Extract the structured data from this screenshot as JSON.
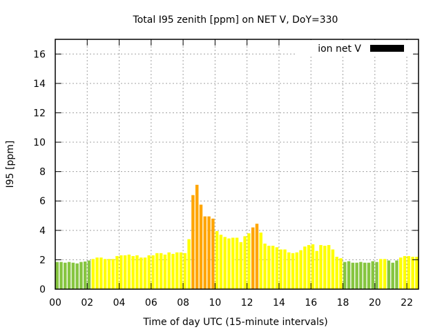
{
  "chart_data": {
    "type": "bar",
    "title": "Total I95 zenith [ppm] on NET V, DoY=330",
    "xlabel": "Time of day UTC (15-minute intervals)",
    "ylabel": "I95 [ppm]",
    "xlim": [
      -0.1,
      22.75
    ],
    "ylim": [
      0,
      17
    ],
    "xticks": [
      "00",
      "02",
      "04",
      "06",
      "08",
      "10",
      "12",
      "14",
      "16",
      "18",
      "20",
      "22"
    ],
    "yticks": [
      "0",
      "2",
      "4",
      "6",
      "8",
      "10",
      "12",
      "14",
      "16"
    ],
    "grid": true,
    "legend": {
      "label": "ion net V",
      "placement": "top-right",
      "color": "#000000"
    },
    "interval_hours": 0.25,
    "thresholds": {
      "low_below": 2,
      "high_above": 4
    },
    "colors": {
      "low": "#86c540",
      "mid": "#ffff00",
      "high": "#ffa500"
    },
    "values": [
      1.85,
      1.85,
      1.8,
      1.85,
      1.8,
      1.75,
      1.85,
      1.88,
      1.95,
      2.05,
      2.15,
      2.15,
      2.05,
      2.05,
      2.05,
      2.25,
      2.3,
      2.3,
      2.35,
      2.25,
      2.3,
      2.15,
      2.15,
      2.3,
      2.3,
      2.45,
      2.45,
      2.35,
      2.5,
      2.4,
      2.5,
      2.5,
      2.45,
      3.4,
      6.4,
      7.1,
      5.75,
      4.95,
      4.95,
      4.8,
      3.95,
      3.7,
      3.55,
      3.45,
      3.5,
      3.5,
      3.2,
      3.6,
      3.8,
      4.2,
      4.45,
      3.85,
      3.1,
      2.95,
      2.95,
      2.85,
      2.7,
      2.7,
      2.5,
      2.45,
      2.5,
      2.65,
      2.9,
      3.0,
      3.05,
      2.6,
      3.0,
      2.95,
      3.0,
      2.7,
      2.2,
      2.1,
      1.85,
      1.9,
      1.8,
      1.8,
      1.85,
      1.8,
      1.8,
      1.9,
      1.85,
      2.05,
      2.05,
      1.95,
      1.8,
      1.95,
      2.15,
      2.25,
      2.25,
      2.2,
      2.2
    ]
  }
}
